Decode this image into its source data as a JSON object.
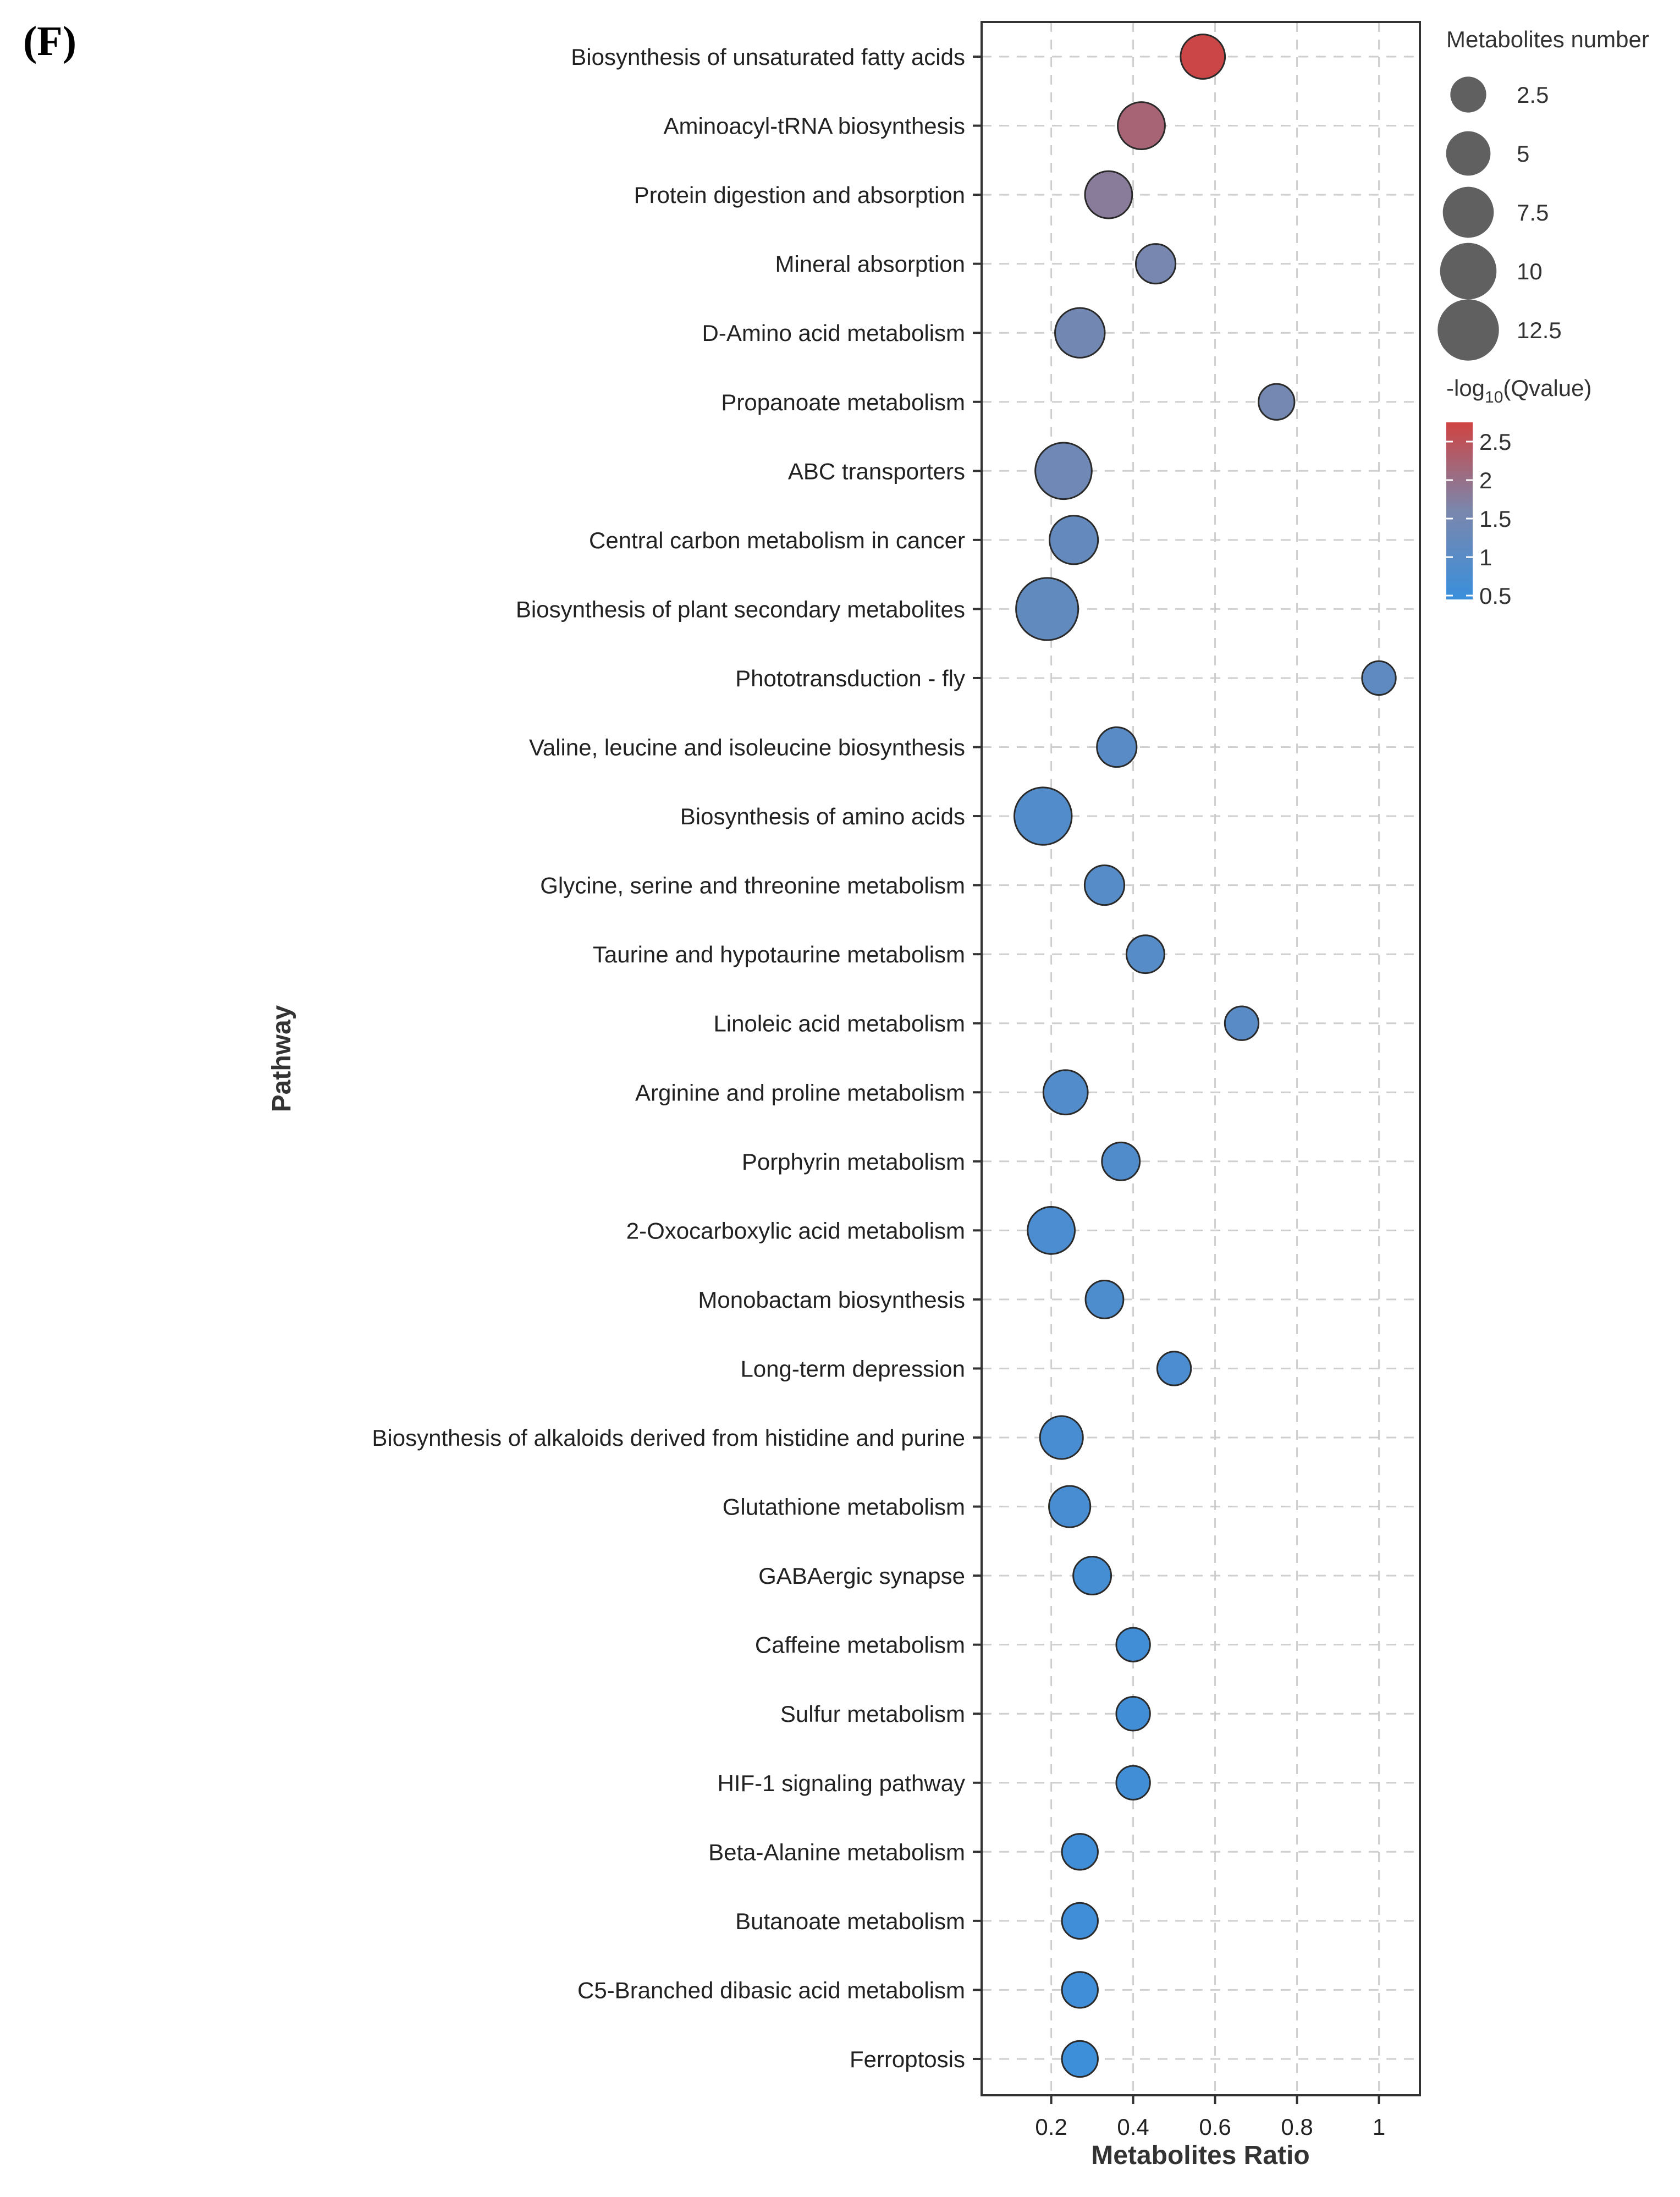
{
  "panel_label": "(F)",
  "chart_data": {
    "type": "scatter",
    "subtype": "bubble",
    "xlabel": "Metabolites Ratio",
    "ylabel": "Pathway",
    "xlim": [
      0.03,
      1.1
    ],
    "xticks": [
      0.2,
      0.4,
      0.6,
      0.8,
      1
    ],
    "xtick_labels": [
      "0.2",
      "0.4",
      "0.6",
      "0.8",
      "1"
    ],
    "grid": true,
    "size_legend": {
      "title": "Metabolites number",
      "entries": [
        {
          "value": 2.5,
          "label": "2.5"
        },
        {
          "value": 5,
          "label": "5"
        },
        {
          "value": 7.5,
          "label": "7.5"
        },
        {
          "value": 10,
          "label": "10"
        },
        {
          "value": 12.5,
          "label": "12.5"
        }
      ]
    },
    "color_legend": {
      "title_prefix": "-log",
      "title_sub": "10",
      "title_suffix": "(Qvalue)",
      "range": [
        0.45,
        2.75
      ],
      "low_color": "#3a8fdc",
      "mid_color": "#7a87ad",
      "high_color": "#cf4442",
      "ticks": [
        {
          "value": 2.5,
          "label": "2.5"
        },
        {
          "value": 2,
          "label": "2"
        },
        {
          "value": 1.5,
          "label": "1.5"
        },
        {
          "value": 1,
          "label": "1"
        },
        {
          "value": 0.5,
          "label": "0.5"
        }
      ]
    },
    "points": [
      {
        "pathway": "Biosynthesis of unsaturated fatty acids",
        "ratio": 0.57,
        "count": 5,
        "neglog10q": 2.7
      },
      {
        "pathway": "Aminoacyl-tRNA biosynthesis",
        "ratio": 0.42,
        "count": 6,
        "neglog10q": 2.2
      },
      {
        "pathway": "Protein digestion and absorption",
        "ratio": 0.34,
        "count": 6,
        "neglog10q": 1.8
      },
      {
        "pathway": "Mineral absorption",
        "ratio": 0.455,
        "count": 3.5,
        "neglog10q": 1.55
      },
      {
        "pathway": "D-Amino acid metabolism",
        "ratio": 0.27,
        "count": 7,
        "neglog10q": 1.45
      },
      {
        "pathway": "Propanoate metabolism",
        "ratio": 0.75,
        "count": 2.5,
        "neglog10q": 1.5
      },
      {
        "pathway": "ABC transporters",
        "ratio": 0.23,
        "count": 10,
        "neglog10q": 1.4
      },
      {
        "pathway": "Central carbon metabolism in cancer",
        "ratio": 0.255,
        "count": 6.5,
        "neglog10q": 1.2
      },
      {
        "pathway": "Biosynthesis of plant secondary metabolites",
        "ratio": 0.19,
        "count": 13,
        "neglog10q": 1.15
      },
      {
        "pathway": "Phototransduction - fly",
        "ratio": 1.0,
        "count": 2,
        "neglog10q": 1.1
      },
      {
        "pathway": "Valine, leucine and isoleucine biosynthesis",
        "ratio": 0.36,
        "count": 3.5,
        "neglog10q": 1.0
      },
      {
        "pathway": "Biosynthesis of amino acids",
        "ratio": 0.18,
        "count": 10.5,
        "neglog10q": 0.9
      },
      {
        "pathway": "Glycine, serine and threonine metabolism",
        "ratio": 0.33,
        "count": 3.5,
        "neglog10q": 0.95
      },
      {
        "pathway": "Taurine and hypotaurine metabolism",
        "ratio": 0.43,
        "count": 3,
        "neglog10q": 0.95
      },
      {
        "pathway": "Linoleic acid metabolism",
        "ratio": 0.665,
        "count": 2,
        "neglog10q": 1.0
      },
      {
        "pathway": "Arginine and proline metabolism",
        "ratio": 0.235,
        "count": 5,
        "neglog10q": 0.9
      },
      {
        "pathway": "Porphyrin metabolism",
        "ratio": 0.37,
        "count": 3,
        "neglog10q": 0.85
      },
      {
        "pathway": "2-Oxocarboxylic acid metabolism",
        "ratio": 0.2,
        "count": 6,
        "neglog10q": 0.75
      },
      {
        "pathway": "Monobactam biosynthesis",
        "ratio": 0.33,
        "count": 3,
        "neglog10q": 0.8
      },
      {
        "pathway": "Long-term depression",
        "ratio": 0.5,
        "count": 2,
        "neglog10q": 0.75
      },
      {
        "pathway": "Biosynthesis of alkaloids derived from histidine and purine",
        "ratio": 0.225,
        "count": 4.5,
        "neglog10q": 0.7
      },
      {
        "pathway": "Glutathione metabolism",
        "ratio": 0.245,
        "count": 4,
        "neglog10q": 0.7
      },
      {
        "pathway": "GABAergic synapse",
        "ratio": 0.3,
        "count": 3,
        "neglog10q": 0.65
      },
      {
        "pathway": "Caffeine metabolism",
        "ratio": 0.4,
        "count": 2,
        "neglog10q": 0.6
      },
      {
        "pathway": "Sulfur metabolism",
        "ratio": 0.4,
        "count": 2,
        "neglog10q": 0.6
      },
      {
        "pathway": "HIF-1 signaling pathway",
        "ratio": 0.4,
        "count": 2,
        "neglog10q": 0.6
      },
      {
        "pathway": "Beta-Alanine metabolism",
        "ratio": 0.27,
        "count": 2.5,
        "neglog10q": 0.55
      },
      {
        "pathway": "Butanoate metabolism",
        "ratio": 0.27,
        "count": 2.5,
        "neglog10q": 0.55
      },
      {
        "pathway": "C5-Branched dibasic acid metabolism",
        "ratio": 0.27,
        "count": 2.5,
        "neglog10q": 0.55
      },
      {
        "pathway": "Ferroptosis",
        "ratio": 0.27,
        "count": 2.5,
        "neglog10q": 0.5
      }
    ]
  }
}
